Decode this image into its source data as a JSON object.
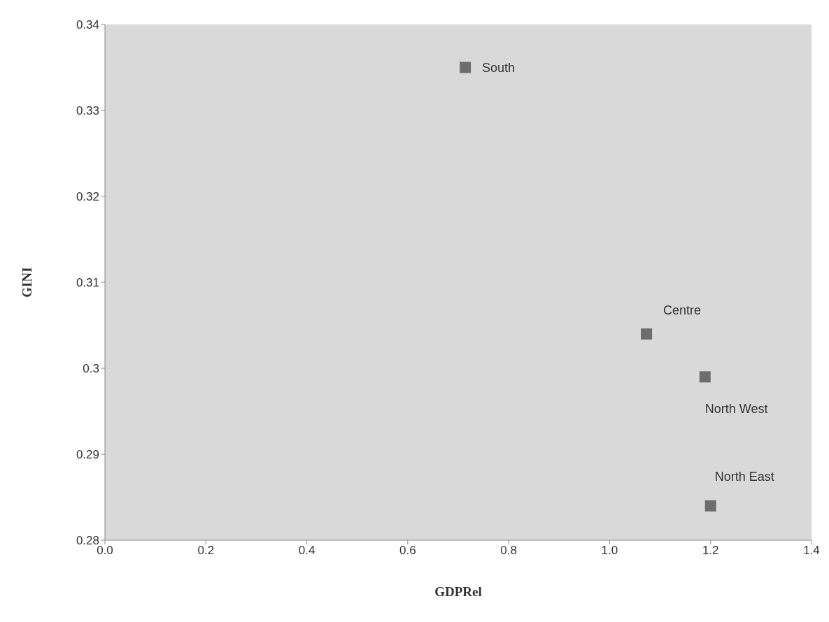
{
  "chart_data": {
    "type": "scatter",
    "xlabel": "GDPRel",
    "ylabel": "GINI",
    "x": [
      0.714,
      1.073,
      1.189,
      1.2
    ],
    "values": [
      0.335,
      0.304,
      0.299,
      0.284
    ],
    "color": "#6d6d6d",
    "marker": "square",
    "grid": false,
    "legend": false,
    "xlim": [
      0,
      1.4
    ],
    "xticks": [
      {
        "value": 0,
        "label": "0.0"
      },
      {
        "value": 0.2,
        "label": "0.2"
      },
      {
        "value": 0.4,
        "label": "0.4"
      },
      {
        "value": 0.6,
        "label": "0.6"
      },
      {
        "value": 0.8,
        "label": "0.8"
      },
      {
        "value": 1,
        "label": "1.0"
      },
      {
        "value": 1.2,
        "label": "1.2"
      },
      {
        "value": 1.4,
        "label": "1.4"
      }
    ],
    "ylim": [
      0.28,
      0.34
    ],
    "yticks": [
      0.28,
      0.29,
      0.3,
      0.31,
      0.32,
      0.33,
      0.34
    ],
    "annotations": [
      {
        "text": "South",
        "x": 0.714,
        "y": 0.335
      },
      {
        "text": "Centre",
        "x": 1.073,
        "y": 0.304
      },
      {
        "text": "North West",
        "x": 1.189,
        "y": 0.299
      },
      {
        "text": "North East",
        "x": 1.2,
        "y": 0.284
      }
    ]
  }
}
